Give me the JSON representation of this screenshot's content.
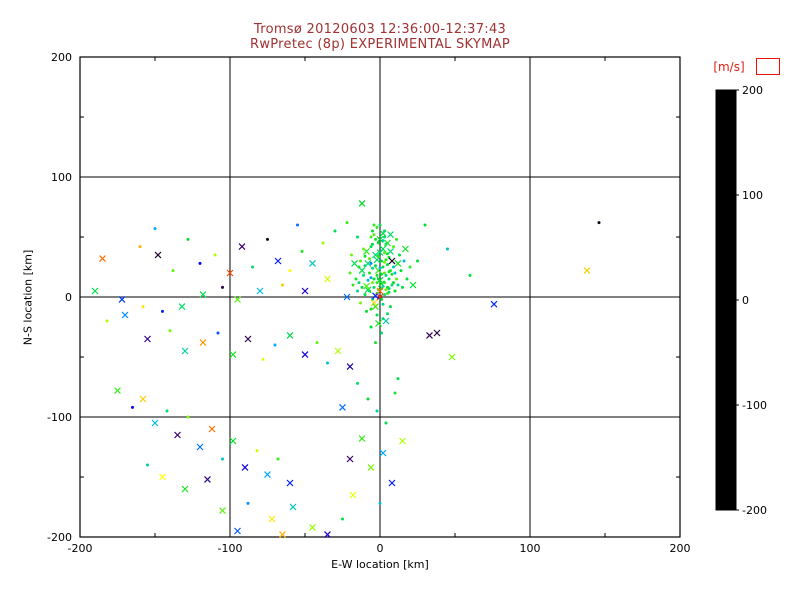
{
  "header": {
    "title": "Tromsø 20120603 12:36:00-12:37:43",
    "subtitle": "RwPretec (8p) EXPERIMENTAL SKYMAP"
  },
  "colors": {
    "background": "#ffffff",
    "axis": "#000000",
    "title_text": "#a03232",
    "colorbar_label_text": "#dd2211",
    "legend_box_outline": "#ee1100"
  },
  "chart_data": {
    "type": "scatter",
    "title": "Tromsø 20120603 12:36:00-12:37:43",
    "subtitle": "RwPretec (8p) EXPERIMENTAL SKYMAP",
    "xlabel": "E-W location [km]",
    "ylabel": "N-S location [km]",
    "xlim": [
      -200,
      200
    ],
    "ylim": [
      -200,
      200
    ],
    "xticks": [
      -200,
      -100,
      0,
      100,
      200
    ],
    "yticks": [
      -200,
      -100,
      0,
      100,
      200
    ],
    "minor_tick_step": 50,
    "grid": true,
    "legend_position": "none",
    "colorbar": {
      "label": "[m/s]",
      "min": -200,
      "max": 200,
      "ticks": [
        200,
        100,
        0,
        -100,
        -200
      ]
    },
    "point_format": [
      "x_km",
      "y_km",
      "velocity_m_s",
      "marker_0dot_1cross"
    ],
    "points": [
      [
        -2,
        3,
        15,
        0
      ],
      [
        1,
        7,
        30,
        0
      ],
      [
        -5,
        -2,
        5,
        0
      ],
      [
        3,
        12,
        45,
        0
      ],
      [
        -8,
        6,
        20,
        1
      ],
      [
        0,
        0,
        190,
        1
      ],
      [
        2,
        -6,
        -5,
        0
      ],
      [
        -4,
        15,
        35,
        0
      ],
      [
        6,
        4,
        10,
        0
      ],
      [
        -1,
        22,
        50,
        1
      ],
      [
        -10,
        2,
        25,
        0
      ],
      [
        4,
        18,
        0,
        0
      ],
      [
        -6,
        -10,
        40,
        0
      ],
      [
        1,
        30,
        18,
        0
      ],
      [
        -3,
        35,
        8,
        1
      ],
      [
        5,
        27,
        28,
        0
      ],
      [
        -12,
        8,
        22,
        0
      ],
      [
        8,
        10,
        12,
        0
      ],
      [
        -7,
        20,
        38,
        0
      ],
      [
        2,
        40,
        16,
        1
      ],
      [
        -1,
        45,
        26,
        0
      ],
      [
        3,
        50,
        6,
        0
      ],
      [
        -5,
        55,
        32,
        0
      ],
      [
        0,
        60,
        14,
        0
      ],
      [
        -9,
        38,
        44,
        1
      ],
      [
        6,
        33,
        24,
        0
      ],
      [
        -14,
        12,
        4,
        0
      ],
      [
        10,
        5,
        34,
        0
      ],
      [
        -2,
        -15,
        19,
        0
      ],
      [
        4,
        -20,
        -12,
        1
      ],
      [
        -6,
        -25,
        29,
        0
      ],
      [
        1,
        -30,
        9,
        0
      ],
      [
        -3,
        -38,
        39,
        0
      ],
      [
        2,
        25,
        21,
        0
      ],
      [
        -8,
        28,
        11,
        1
      ],
      [
        5,
        8,
        31,
        0
      ],
      [
        -11,
        18,
        1,
        0
      ],
      [
        7,
        22,
        41,
        0
      ],
      [
        -4,
        8,
        17,
        0
      ],
      [
        0,
        14,
        27,
        1
      ],
      [
        3,
        2,
        7,
        0
      ],
      [
        -2,
        18,
        37,
        0
      ],
      [
        6,
        15,
        13,
        0
      ],
      [
        -7,
        5,
        23,
        0
      ],
      [
        1,
        11,
        33,
        1
      ],
      [
        -5,
        24,
        3,
        0
      ],
      [
        4,
        31,
        43,
        0
      ],
      [
        -1,
        6,
        53,
        0
      ],
      [
        2,
        9,
        -8,
        0
      ],
      [
        -3,
        1,
        -90,
        1
      ],
      [
        8,
        19,
        36,
        0
      ],
      [
        -10,
        26,
        2,
        0
      ],
      [
        5,
        36,
        42,
        0
      ],
      [
        -6,
        42,
        18,
        0
      ],
      [
        0,
        48,
        28,
        1
      ],
      [
        3,
        55,
        8,
        0
      ],
      [
        -2,
        58,
        48,
        0
      ],
      [
        -13,
        30,
        58,
        0
      ],
      [
        9,
        25,
        -18,
        0
      ],
      [
        -4,
        -5,
        130,
        1
      ],
      [
        7,
        -8,
        22,
        0
      ],
      [
        -9,
        -12,
        32,
        0
      ],
      [
        2,
        -18,
        12,
        0
      ],
      [
        -1,
        -22,
        42,
        1
      ],
      [
        4,
        44,
        2,
        0
      ],
      [
        -6,
        50,
        52,
        0
      ],
      [
        11,
        15,
        62,
        0
      ],
      [
        -15,
        5,
        -2,
        0
      ],
      [
        12,
        28,
        38,
        1
      ],
      [
        -3,
        26,
        18,
        0
      ],
      [
        1,
        19,
        28,
        0
      ],
      [
        -8,
        14,
        -22,
        0
      ],
      [
        5,
        3,
        48,
        0
      ],
      [
        -2,
        31,
        8,
        1
      ],
      [
        3,
        37,
        58,
        0
      ],
      [
        -5,
        12,
        68,
        0
      ],
      [
        0,
        24,
        -32,
        0
      ],
      [
        6,
        21,
        38,
        0
      ],
      [
        -12,
        22,
        18,
        1
      ],
      [
        9,
        12,
        28,
        0
      ],
      [
        -1,
        34,
        48,
        0
      ],
      [
        2,
        47,
        -12,
        0
      ],
      [
        -4,
        52,
        58,
        0
      ],
      [
        7,
        38,
        8,
        1
      ],
      [
        -10,
        34,
        38,
        0
      ],
      [
        4,
        6,
        68,
        0
      ],
      [
        -6,
        16,
        -42,
        0
      ],
      [
        1,
        -2,
        28,
        0
      ],
      [
        -3,
        -8,
        48,
        1
      ],
      [
        5,
        -14,
        18,
        0
      ],
      [
        -7,
        32,
        58,
        0
      ],
      [
        10,
        20,
        -22,
        0
      ],
      [
        -14,
        25,
        38,
        0
      ],
      [
        0,
        37,
        8,
        1
      ],
      [
        3,
        29,
        68,
        0
      ],
      [
        -5,
        44,
        28,
        0
      ],
      [
        8,
        30,
        -190,
        1
      ],
      [
        -2,
        12,
        48,
        0
      ],
      [
        6,
        7,
        18,
        0
      ],
      [
        -9,
        9,
        58,
        1
      ],
      [
        12,
        10,
        -8,
        0
      ],
      [
        -16,
        15,
        38,
        0
      ],
      [
        14,
        22,
        28,
        0
      ],
      [
        -11,
        40,
        68,
        0
      ],
      [
        2,
        53,
        18,
        1
      ],
      [
        -4,
        60,
        48,
        0
      ],
      [
        0,
        5,
        170,
        1
      ],
      [
        -1,
        15,
        28,
        0
      ],
      [
        3,
        20,
        58,
        0
      ],
      [
        -6,
        28,
        -52,
        0
      ],
      [
        5,
        45,
        38,
        1
      ],
      [
        13,
        35,
        18,
        0
      ],
      [
        -18,
        10,
        48,
        0
      ],
      [
        15,
        8,
        28,
        0
      ],
      [
        -13,
        -5,
        68,
        0
      ],
      [
        7,
        52,
        8,
        1
      ],
      [
        -3,
        48,
        38,
        0
      ],
      [
        9,
        42,
        58,
        0
      ],
      [
        16,
        30,
        -28,
        0
      ],
      [
        -17,
        28,
        18,
        1
      ],
      [
        11,
        48,
        48,
        0
      ],
      [
        18,
        15,
        28,
        0
      ],
      [
        -20,
        20,
        58,
        0
      ],
      [
        17,
        40,
        38,
        1
      ],
      [
        -15,
        50,
        8,
        0
      ],
      [
        20,
        25,
        48,
        0
      ],
      [
        -19,
        35,
        68,
        0
      ],
      [
        22,
        10,
        28,
        1
      ],
      [
        25,
        30,
        18,
        0
      ],
      [
        -22,
        0,
        -60,
        1
      ],
      [
        -185,
        32,
        170,
        1
      ],
      [
        -190,
        5,
        20,
        1
      ],
      [
        -172,
        -2,
        -80,
        1
      ],
      [
        -160,
        42,
        150,
        0
      ],
      [
        -150,
        57,
        -40,
        0
      ],
      [
        -148,
        35,
        -180,
        1
      ],
      [
        -138,
        22,
        60,
        0
      ],
      [
        -128,
        48,
        30,
        0
      ],
      [
        -120,
        28,
        -100,
        0
      ],
      [
        -110,
        35,
        90,
        0
      ],
      [
        -100,
        20,
        180,
        1
      ],
      [
        -92,
        42,
        -150,
        1
      ],
      [
        -85,
        25,
        10,
        0
      ],
      [
        -75,
        48,
        -190,
        0
      ],
      [
        -68,
        30,
        -90,
        1
      ],
      [
        -60,
        22,
        120,
        0
      ],
      [
        -52,
        38,
        40,
        0
      ],
      [
        -45,
        28,
        -20,
        1
      ],
      [
        -38,
        45,
        80,
        0
      ],
      [
        -30,
        55,
        20,
        0
      ],
      [
        -22,
        62,
        50,
        0
      ],
      [
        -12,
        78,
        30,
        1
      ],
      [
        -55,
        60,
        -60,
        0
      ],
      [
        -35,
        15,
        100,
        1
      ],
      [
        -50,
        5,
        -120,
        1
      ],
      [
        -65,
        10,
        140,
        0
      ],
      [
        -80,
        5,
        -30,
        1
      ],
      [
        -95,
        -2,
        60,
        1
      ],
      [
        -105,
        8,
        -170,
        0
      ],
      [
        -118,
        2,
        20,
        1
      ],
      [
        -132,
        -8,
        10,
        1
      ],
      [
        -145,
        -12,
        -90,
        0
      ],
      [
        -158,
        -8,
        130,
        0
      ],
      [
        -170,
        -15,
        -50,
        1
      ],
      [
        -182,
        -20,
        90,
        0
      ],
      [
        -155,
        -35,
        -140,
        1
      ],
      [
        -140,
        -28,
        70,
        0
      ],
      [
        -130,
        -45,
        -10,
        1
      ],
      [
        -118,
        -38,
        160,
        1
      ],
      [
        -108,
        -30,
        -70,
        0
      ],
      [
        -98,
        -48,
        40,
        1
      ],
      [
        -88,
        -35,
        -160,
        1
      ],
      [
        -78,
        -52,
        110,
        0
      ],
      [
        -70,
        -40,
        -40,
        0
      ],
      [
        -60,
        -32,
        20,
        1
      ],
      [
        -50,
        -48,
        -110,
        1
      ],
      [
        -42,
        -38,
        60,
        0
      ],
      [
        -35,
        -55,
        -20,
        0
      ],
      [
        -28,
        -45,
        90,
        1
      ],
      [
        -20,
        -58,
        -130,
        1
      ],
      [
        -175,
        -78,
        50,
        1
      ],
      [
        -165,
        -92,
        -100,
        0
      ],
      [
        -158,
        -85,
        140,
        1
      ],
      [
        -150,
        -105,
        -30,
        1
      ],
      [
        -142,
        -95,
        10,
        0
      ],
      [
        -135,
        -115,
        -150,
        1
      ],
      [
        -128,
        -100,
        70,
        0
      ],
      [
        -120,
        -125,
        -60,
        1
      ],
      [
        -112,
        -110,
        170,
        1
      ],
      [
        -105,
        -135,
        -20,
        0
      ],
      [
        -98,
        -120,
        30,
        1
      ],
      [
        -90,
        -142,
        -110,
        1
      ],
      [
        -82,
        -128,
        100,
        0
      ],
      [
        -75,
        -148,
        -40,
        1
      ],
      [
        -68,
        -135,
        50,
        0
      ],
      [
        -60,
        -155,
        -90,
        1
      ],
      [
        -145,
        -150,
        120,
        1
      ],
      [
        -155,
        -140,
        -10,
        0
      ],
      [
        -130,
        -160,
        40,
        1
      ],
      [
        -115,
        -152,
        -140,
        1
      ],
      [
        -105,
        -178,
        60,
        1
      ],
      [
        -88,
        -172,
        -50,
        0
      ],
      [
        -72,
        -185,
        130,
        1
      ],
      [
        -58,
        -175,
        -20,
        1
      ],
      [
        -45,
        -192,
        80,
        1
      ],
      [
        -35,
        -198,
        -120,
        1
      ],
      [
        -25,
        -185,
        20,
        0
      ],
      [
        -95,
        -195,
        -70,
        1
      ],
      [
        -65,
        -198,
        150,
        1
      ],
      [
        -15,
        -72,
        10,
        0
      ],
      [
        -8,
        -85,
        30,
        0
      ],
      [
        -2,
        -95,
        -10,
        0
      ],
      [
        4,
        -105,
        20,
        0
      ],
      [
        -12,
        -118,
        50,
        1
      ],
      [
        2,
        -130,
        -40,
        1
      ],
      [
        -6,
        -142,
        70,
        1
      ],
      [
        8,
        -155,
        -90,
        1
      ],
      [
        -18,
        -165,
        110,
        1
      ],
      [
        0,
        -172,
        -30,
        0
      ],
      [
        10,
        -80,
        40,
        0
      ],
      [
        -25,
        -92,
        -60,
        1
      ],
      [
        15,
        -120,
        90,
        1
      ],
      [
        -20,
        -135,
        -150,
        1
      ],
      [
        12,
        -68,
        15,
        0
      ],
      [
        30,
        60,
        30,
        0
      ],
      [
        45,
        40,
        -20,
        0
      ],
      [
        38,
        -30,
        -170,
        1
      ],
      [
        48,
        -50,
        70,
        1
      ],
      [
        138,
        22,
        140,
        1
      ],
      [
        146,
        62,
        -190,
        0
      ],
      [
        76,
        -6,
        -85,
        1
      ],
      [
        60,
        18,
        25,
        0
      ],
      [
        33,
        -32,
        -160,
        1
      ]
    ]
  }
}
